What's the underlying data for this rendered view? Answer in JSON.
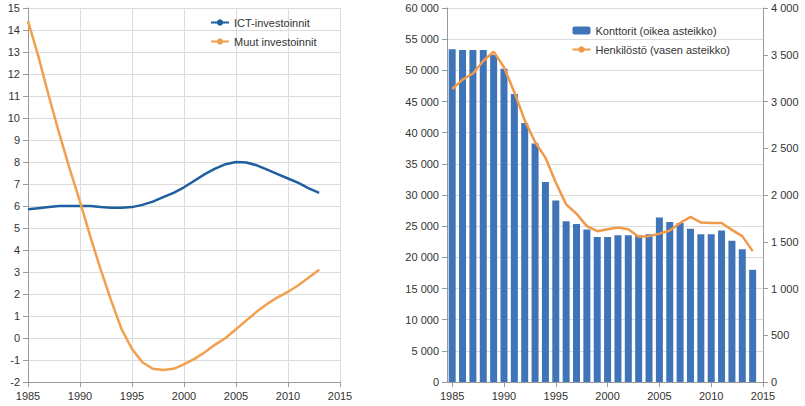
{
  "chart_data": [
    {
      "type": "line",
      "x": [
        1985,
        1986,
        1987,
        1988,
        1989,
        1990,
        1991,
        1992,
        1993,
        1994,
        1995,
        1996,
        1997,
        1998,
        1999,
        2000,
        2001,
        2002,
        2003,
        2004,
        2005,
        2006,
        2007,
        2008,
        2009,
        2010,
        2011,
        2012,
        2013
      ],
      "series": [
        {
          "name": "ICT-investoinnit",
          "color": "#1f5fa0",
          "values": [
            5.85,
            5.9,
            5.95,
            6.0,
            6.0,
            6.0,
            6.0,
            5.95,
            5.92,
            5.92,
            5.95,
            6.05,
            6.2,
            6.4,
            6.6,
            6.85,
            7.15,
            7.45,
            7.7,
            7.9,
            8.0,
            7.98,
            7.85,
            7.65,
            7.45,
            7.25,
            7.05,
            6.8,
            6.6
          ]
        },
        {
          "name": "Muut investoinnit",
          "color": "#f2a04e",
          "values": [
            14.4,
            12.8,
            11.0,
            9.3,
            7.7,
            6.2,
            4.6,
            3.1,
            1.7,
            0.4,
            -0.5,
            -1.1,
            -1.4,
            -1.45,
            -1.4,
            -1.2,
            -0.95,
            -0.65,
            -0.3,
            0.0,
            0.4,
            0.8,
            1.2,
            1.55,
            1.85,
            2.1,
            2.4,
            2.75,
            3.1
          ]
        }
      ],
      "xlim": [
        1985,
        2015
      ],
      "xticks": [
        1985,
        1990,
        1995,
        2000,
        2005,
        2010,
        2015
      ],
      "ylim": [
        -2,
        15
      ],
      "yticks": [
        -2,
        -1,
        0,
        1,
        2,
        3,
        4,
        5,
        6,
        7,
        8,
        9,
        10,
        11,
        12,
        13,
        14,
        15
      ],
      "grid": true,
      "legend": "upper right"
    },
    {
      "type": "bar",
      "x": [
        1985,
        1986,
        1987,
        1988,
        1989,
        1990,
        1991,
        1992,
        1993,
        1994,
        1995,
        1996,
        1997,
        1998,
        1999,
        2000,
        2001,
        2002,
        2003,
        2004,
        2005,
        2006,
        2007,
        2008,
        2009,
        2010,
        2011,
        2012,
        2013,
        2014
      ],
      "series": [
        {
          "name": "Konttorit (oikea asteikko)",
          "type": "bar",
          "axis": "y2",
          "color": "#3f74b8",
          "values": [
            3560,
            3550,
            3550,
            3550,
            3500,
            3350,
            3080,
            2770,
            2550,
            2140,
            1940,
            1720,
            1690,
            1630,
            1550,
            1550,
            1570,
            1570,
            1570,
            1580,
            1760,
            1710,
            1700,
            1640,
            1580,
            1580,
            1620,
            1510,
            1420,
            1200
          ]
        },
        {
          "name": "Henkilöstö (vasen asteikko)",
          "type": "line",
          "color": "#f09a4a",
          "values": [
            47000,
            48500,
            49500,
            51500,
            53000,
            50500,
            46500,
            42000,
            38500,
            36000,
            32000,
            28500,
            27000,
            25000,
            24200,
            24500,
            24800,
            24500,
            23300,
            23400,
            23800,
            24300,
            25500,
            26500,
            25600,
            25500,
            25500,
            24400,
            23400,
            21000
          ]
        }
      ],
      "xlim": [
        1984.5,
        2015
      ],
      "xticks": [
        1985,
        1990,
        1995,
        2000,
        2005,
        2010,
        2015
      ],
      "ylim": [
        0,
        60000
      ],
      "yticks": [
        0,
        {
          "value": 5000,
          "label": "5 000"
        },
        {
          "value": 10000,
          "label": "10 000"
        },
        {
          "value": 15000,
          "label": "15 000"
        },
        {
          "value": 20000,
          "label": "20 000"
        },
        {
          "value": 25000,
          "label": "25 000"
        },
        {
          "value": 30000,
          "label": "30 000"
        },
        {
          "value": 35000,
          "label": "35 000"
        },
        {
          "value": 40000,
          "label": "40 000"
        },
        {
          "value": 45000,
          "label": "45 000"
        },
        {
          "value": 50000,
          "label": "50 000"
        },
        {
          "value": 55000,
          "label": "55 000"
        },
        {
          "value": 60000,
          "label": "60 000"
        }
      ],
      "y2lim": [
        0,
        4000
      ],
      "y2ticks": [
        0,
        500,
        {
          "value": 1000,
          "label": "1 000"
        },
        {
          "value": 1500,
          "label": "1 500"
        },
        {
          "value": 2000,
          "label": "2 000"
        },
        {
          "value": 2500,
          "label": "2 500"
        },
        {
          "value": 3000,
          "label": "3 000"
        },
        {
          "value": 3500,
          "label": "3 500"
        },
        {
          "value": 4000,
          "label": "4 000"
        }
      ],
      "grid": "y",
      "legend": "upper right"
    }
  ]
}
